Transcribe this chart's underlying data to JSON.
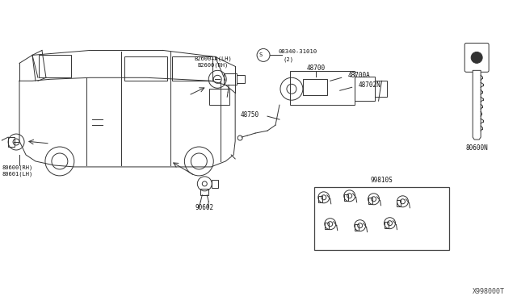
{
  "bg_color": "#ffffff",
  "line_color": "#333333",
  "diagram_ref": "X998000T",
  "part_numbers": {
    "top_left_lock": [
      "B2600+A(LH)",
      "B2600(RH)"
    ],
    "bottom_left_lock": [
      "80600(RH)",
      "80601(LH)"
    ],
    "bottom_center_lock": "90602",
    "steering_column_labels": [
      "08340-31010",
      "(2)",
      "48700",
      "48700A",
      "48702N",
      "48750"
    ],
    "blank_key": "80600N",
    "key_set_box": "99810S"
  },
  "box_edge_color": "#444444"
}
